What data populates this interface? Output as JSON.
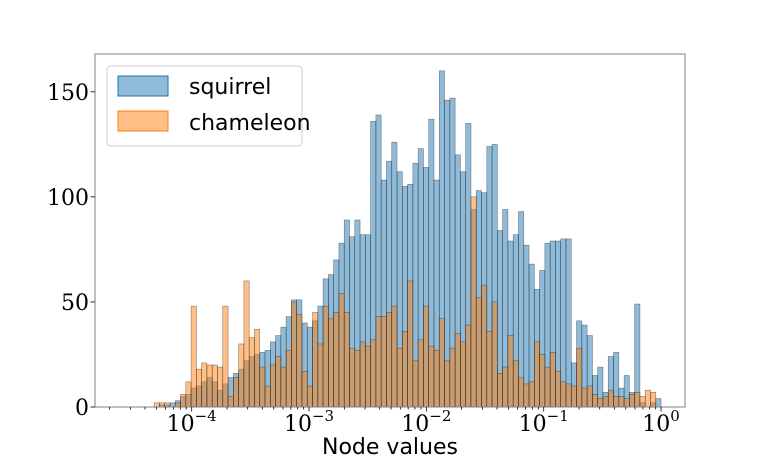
{
  "chart_data": {
    "type": "bar",
    "title": "",
    "xlabel": "Node values",
    "ylabel": "",
    "xscale": "log",
    "xlim": [
      1.5e-05,
      1.6
    ],
    "ylim": [
      0,
      168
    ],
    "grid": false,
    "legend_position": "top-left",
    "bin_edges_log10": {
      "start": -4.5,
      "end": 0.0,
      "count": 100
    },
    "x_ticks": [
      {
        "value": 0.0001,
        "base": "10",
        "exp": "−4"
      },
      {
        "value": 0.001,
        "base": "10",
        "exp": "−3"
      },
      {
        "value": 0.01,
        "base": "10",
        "exp": "−2"
      },
      {
        "value": 0.1,
        "base": "10",
        "exp": "−1"
      },
      {
        "value": 1,
        "base": "10",
        "exp": "0"
      }
    ],
    "y_ticks": [
      0,
      50,
      100,
      150
    ],
    "series": [
      {
        "name": "squirrel",
        "color": "#1f77b4",
        "values": [
          0,
          0,
          0,
          0,
          0,
          1,
          1,
          2,
          3,
          5,
          6,
          9,
          10,
          12,
          14,
          12,
          8,
          11,
          14,
          16,
          18,
          22,
          24,
          25,
          26,
          27,
          31,
          34,
          38,
          43,
          51,
          51,
          40,
          38,
          41,
          48,
          61,
          63,
          70,
          78,
          89,
          81,
          89,
          82,
          82,
          136,
          139,
          108,
          117,
          126,
          112,
          105,
          106,
          116,
          123,
          114,
          137,
          108,
          160,
          146,
          147,
          120,
          112,
          135,
          94,
          103,
          102,
          124,
          125,
          84,
          94,
          79,
          82,
          93,
          77,
          68,
          56,
          65,
          78,
          79,
          79,
          80,
          80,
          21,
          41,
          39,
          34,
          15,
          19,
          7,
          24,
          26,
          9,
          15,
          7,
          49,
          2,
          0,
          2,
          4
        ]
      },
      {
        "name": "chameleon",
        "color": "#ff7f0e",
        "values": [
          0,
          0,
          0,
          0,
          2,
          2,
          2,
          0,
          2,
          6,
          12,
          48,
          18,
          21,
          20,
          20,
          19,
          48,
          5,
          14,
          30,
          60,
          33,
          37,
          19,
          10,
          20,
          24,
          19,
          27,
          50,
          44,
          17,
          10,
          45,
          30,
          48,
          42,
          45,
          54,
          45,
          28,
          27,
          31,
          29,
          32,
          43,
          43,
          45,
          48,
          28,
          36,
          60,
          22,
          32,
          48,
          29,
          27,
          42,
          22,
          28,
          35,
          31,
          39,
          100,
          52,
          58,
          36,
          50,
          16,
          19,
          34,
          22,
          14,
          11,
          12,
          31,
          25,
          19,
          26,
          17,
          12,
          11,
          10,
          28,
          9,
          10,
          6,
          4,
          5,
          8,
          5,
          5,
          4,
          6,
          7,
          5,
          8,
          7,
          0
        ]
      }
    ]
  }
}
